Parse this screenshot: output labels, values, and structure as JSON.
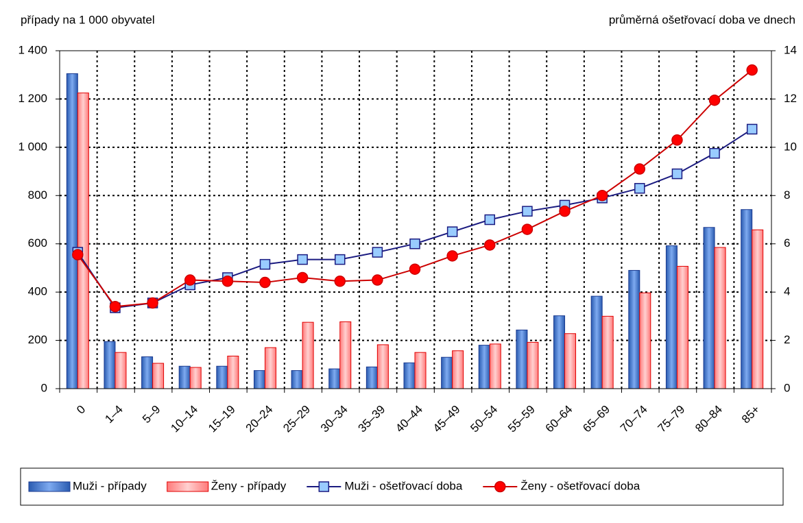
{
  "chart_data": {
    "type": "bar-line",
    "y_label": "případy na 1 000 obyvatel",
    "y2_label": "průměrná ošetřovací doba ve dnech",
    "categories": [
      "0",
      "1–4",
      "5–9",
      "10–14",
      "15–19",
      "20–24",
      "25–29",
      "30–34",
      "35–39",
      "40–44",
      "45–49",
      "50–54",
      "55–59",
      "60–64",
      "65–69",
      "70–74",
      "75–79",
      "80–84",
      "85+"
    ],
    "series": [
      {
        "name": "Muži - případy",
        "kind": "bar",
        "color": "#4a7fd0",
        "values": [
          1305,
          195,
          132,
          93,
          93,
          75,
          75,
          82,
          90,
          107,
          130,
          180,
          243,
          302,
          383,
          490,
          592,
          668,
          742
        ]
      },
      {
        "name": "Ženy - případy",
        "kind": "bar",
        "color": "#ff9a9a",
        "values": [
          1225,
          150,
          105,
          88,
          135,
          170,
          275,
          277,
          182,
          150,
          157,
          185,
          192,
          228,
          300,
          397,
          507,
          585,
          658
        ]
      },
      {
        "name": "Muži - ošetřovací doba",
        "kind": "line",
        "axis": "y2",
        "color": "#1a1a80",
        "marker_color": "#99ccff",
        "marker": "square",
        "values": [
          5.65,
          3.35,
          3.55,
          4.3,
          4.6,
          5.15,
          5.35,
          5.35,
          5.65,
          6.0,
          6.5,
          7.0,
          7.35,
          7.6,
          7.9,
          8.3,
          8.9,
          9.75,
          10.75
        ]
      },
      {
        "name": "Ženy - ošetřovací doba",
        "kind": "line",
        "axis": "y2",
        "color": "#cc0000",
        "marker_color": "#ff0000",
        "marker": "circle",
        "values": [
          5.55,
          3.4,
          3.55,
          4.5,
          4.45,
          4.4,
          4.6,
          4.45,
          4.5,
          4.95,
          5.5,
          5.95,
          6.6,
          7.35,
          8.0,
          9.1,
          10.3,
          11.95,
          13.2
        ]
      }
    ],
    "ylim": [
      0,
      1400
    ],
    "yticks": [
      0,
      200,
      400,
      600,
      800,
      {
        "value": 1000,
        "label": "1 000"
      },
      {
        "value": 1200,
        "label": "1 200"
      },
      {
        "value": 1400,
        "label": "1 400"
      }
    ],
    "y2lim": [
      0,
      14
    ],
    "y2ticks": [
      0,
      2,
      4,
      6,
      8,
      10,
      12,
      14
    ],
    "grid": true,
    "legend": "bottom"
  }
}
